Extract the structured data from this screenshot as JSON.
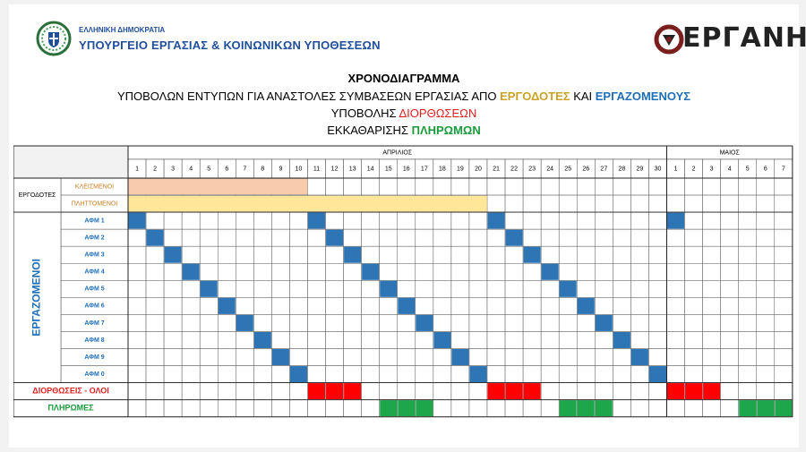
{
  "header": {
    "ministry_line1": "ΕΛΛΗΝΙΚΗ ΔΗΜΟΚΡΑΤΙΑ",
    "ministry_line2": "ΥΠΟΥΡΓΕΙΟ ΕΡΓΑΣΙΑΣ & ΚΟΙΝΩΝΙΚΩΝ ΥΠΟΘΕΣΕΩΝ",
    "logo_text": "ΕΡΓΑΝΗ"
  },
  "titles": {
    "line1": "ΧΡΟΝΟΔΙΑΓΡΑΜΜΑ",
    "line2_a": "ΥΠΟΒΟΛΩΝ ΕΝΤΥΠΩΝ ΓΙΑ ΑΝΑΣΤΟΛΕΣ ΣΥΜΒΑΣΕΩΝ ΕΡΓΑΣΙΑΣ ΑΠΟ ",
    "line2_b": "ΕΡΓΟΔΟΤΕΣ",
    "line2_c": " ΚΑΙ ",
    "line2_d": "ΕΡΓΑΖΟΜΕΝΟΥΣ",
    "line3_a": "ΥΠΟΒΟΛΗΣ ",
    "line3_b": "ΔΙΟΡΘΩΣΕΩΝ",
    "line4_a": "ΕΚΚΑΘΑΡΙΣΗΣ ",
    "line4_b": "ΠΛΗΡΩΜΩΝ"
  },
  "table": {
    "months": [
      {
        "label": "ΑΠΡΙΛΙΟΣ",
        "days": 30
      },
      {
        "label": "ΜΑΙΟΣ",
        "days": 7
      }
    ],
    "employers_label": "ΕΡΓΟΔΟΤΕΣ",
    "employer_rows": [
      {
        "label": "ΚΛΕΙΣΜΕΝΟΙ",
        "from": 1,
        "to": 10,
        "color": "#f8cbad"
      },
      {
        "label": "ΠΛΗΤΤΟΜΕΝΟΙ",
        "from": 1,
        "to": 20,
        "color": "#ffe699"
      }
    ],
    "workers_label": "ΕΡΓΑΖΟΜΕΝΟΙ",
    "worker_rows": [
      {
        "label": "ΑΦΜ 1",
        "days": [
          1,
          11,
          21,
          31
        ]
      },
      {
        "label": "ΑΦΜ 2",
        "days": [
          2,
          12,
          22
        ]
      },
      {
        "label": "ΑΦΜ 3",
        "days": [
          3,
          13,
          23
        ]
      },
      {
        "label": "ΑΦΜ 4",
        "days": [
          4,
          14,
          24
        ]
      },
      {
        "label": "ΑΦΜ 5",
        "days": [
          5,
          15,
          25
        ]
      },
      {
        "label": "ΑΦΜ 6",
        "days": [
          6,
          16,
          26
        ]
      },
      {
        "label": "ΑΦΜ 7",
        "days": [
          7,
          17,
          27
        ]
      },
      {
        "label": "ΑΦΜ 8",
        "days": [
          8,
          18,
          28
        ]
      },
      {
        "label": "ΑΦΜ 9",
        "days": [
          9,
          19,
          29
        ]
      },
      {
        "label": "ΑΦΜ 0",
        "days": [
          10,
          20,
          30
        ]
      }
    ],
    "corrections": {
      "label": "ΔΙΟΡΘΩΣΕΙΣ - ΟΛΟΙ",
      "days": [
        11,
        12,
        13,
        21,
        22,
        23,
        31,
        32,
        33
      ]
    },
    "payments": {
      "label": "ΠΛΗΡΩΜΕΣ",
      "days": [
        15,
        16,
        17,
        25,
        26,
        27,
        35,
        36,
        37
      ]
    },
    "colors": {
      "worker_fill": "#2e75b6",
      "corrections_fill": "#ff0000",
      "payments_fill": "#1ea64a",
      "row_label_blue": "#1f6fb8",
      "employer_label_orange": "#c97a1c",
      "corrections_label_red": "#e02020",
      "payments_label_green": "#1a9a3a",
      "header_fill": "#f2f2f2"
    }
  }
}
